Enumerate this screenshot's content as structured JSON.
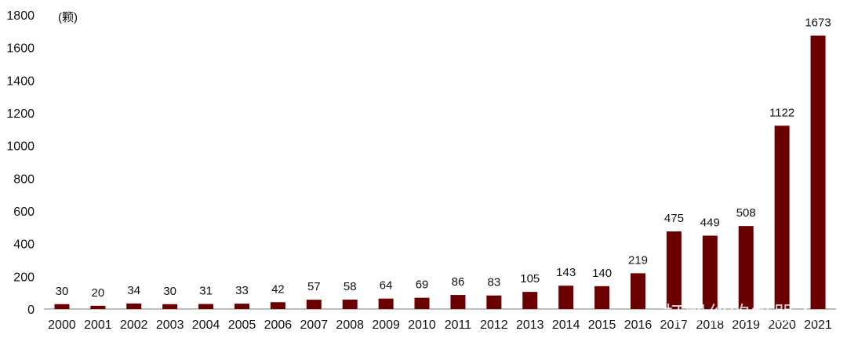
{
  "chart_data": {
    "type": "bar",
    "title": "",
    "xlabel": "",
    "ylabel": "",
    "unit_label": "(颗)",
    "categories": [
      "2000",
      "2001",
      "2002",
      "2003",
      "2004",
      "2005",
      "2006",
      "2007",
      "2008",
      "2009",
      "2010",
      "2011",
      "2012",
      "2013",
      "2014",
      "2015",
      "2016",
      "2017",
      "2018",
      "2019",
      "2020",
      "2021"
    ],
    "series": [
      {
        "values": [
          30,
          20,
          34,
          30,
          31,
          33,
          42,
          57,
          58,
          64,
          69,
          86,
          83,
          105,
          143,
          140,
          219,
          475,
          449,
          508,
          1122,
          1673
        ],
        "color": "#6b0000"
      }
    ],
    "data_labels": [
      "30",
      "20",
      "34",
      "30",
      "31",
      "33",
      "42",
      "57",
      "58",
      "64",
      "69",
      "86",
      "83",
      "105",
      "143",
      "140",
      "219",
      "475",
      "449",
      "508",
      "1122",
      "1673"
    ],
    "ylim": [
      0,
      1800
    ],
    "yticks": [
      0,
      200,
      400,
      600,
      800,
      1000,
      1200,
      1400,
      1600,
      1800
    ],
    "ytick_labels": [
      "0",
      "200",
      "400",
      "600",
      "800",
      "1000",
      "1200",
      "1400",
      "1600",
      "1800"
    ],
    "grid": false,
    "legend": "none"
  },
  "watermark": "打螺丝的机器人"
}
